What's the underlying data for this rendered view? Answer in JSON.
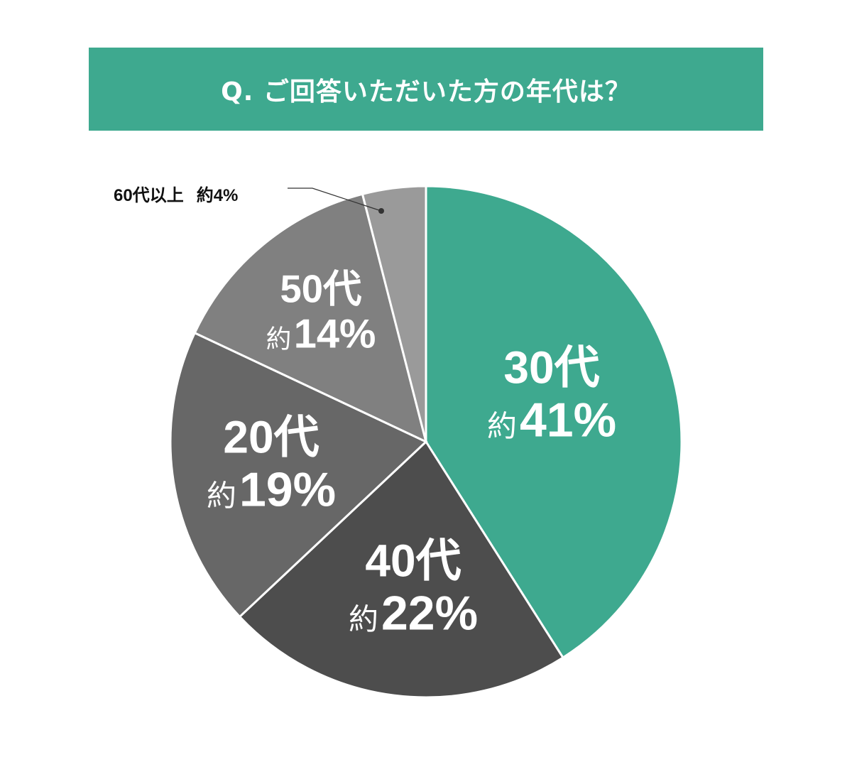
{
  "title": "Q. ご回答いただいた方の年代は？",
  "chart_data": {
    "type": "pie",
    "title": "Q. ご回答いただいた方の年代は？",
    "start": "top",
    "direction": "clockwise",
    "slices": [
      {
        "label": "30代",
        "prefix": "約",
        "value": 41,
        "value_label": "41%",
        "color": "#3ea98f"
      },
      {
        "label": "40代",
        "prefix": "約",
        "value": 22,
        "value_label": "22%",
        "color": "#4d4d4d"
      },
      {
        "label": "20代",
        "prefix": "約",
        "value": 19,
        "value_label": "19%",
        "color": "#676767"
      },
      {
        "label": "50代",
        "prefix": "約",
        "value": 14,
        "value_label": "14%",
        "color": "#808080"
      },
      {
        "label": "60代以上",
        "prefix": "約",
        "value": 4,
        "value_label": "4%",
        "color": "#9a9a9a"
      }
    ]
  }
}
